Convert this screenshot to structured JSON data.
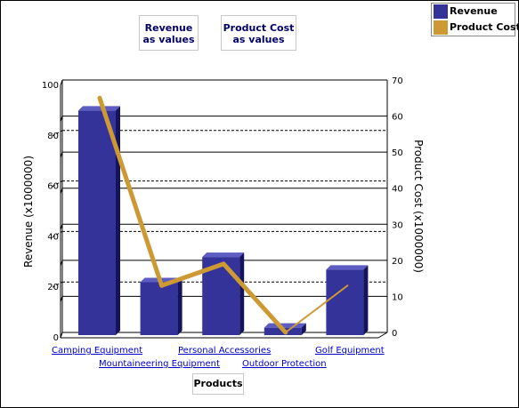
{
  "notes": {
    "revenue": [
      "Revenue",
      "as values"
    ],
    "cost": [
      "Product Cost",
      "as values"
    ]
  },
  "legend": [
    {
      "label": "Revenue",
      "color": "#333399"
    },
    {
      "label": "Product Cost",
      "color": "#cc9933"
    }
  ],
  "chart_data": {
    "type": "bar",
    "categories": [
      "Camping Equipment",
      "Mountaineering Equipment",
      "Personal Accessories",
      "Outdoor Protection",
      "Golf Equipment"
    ],
    "series": [
      {
        "name": "Revenue",
        "kind": "bar",
        "axis": "left",
        "color": "#333399",
        "values": [
          90,
          22,
          32,
          4,
          27
        ]
      },
      {
        "name": "Product Cost",
        "kind": "line",
        "axis": "right",
        "color": "#cc9933",
        "values": [
          65,
          13,
          19,
          0,
          13
        ]
      }
    ],
    "ylabel": "Revenue (x1000000)",
    "y2label": "Product Cost (x1000000)",
    "xlabel": "Products",
    "ylim": [
      0,
      100
    ],
    "y2lim": [
      0,
      70
    ],
    "yticks": [
      "0",
      "20",
      "40",
      "60",
      "80",
      "100"
    ],
    "y2ticks": [
      "0",
      "10",
      "20",
      "30",
      "40",
      "50",
      "60",
      "70"
    ],
    "legend_position": "top-right",
    "grid": true
  }
}
